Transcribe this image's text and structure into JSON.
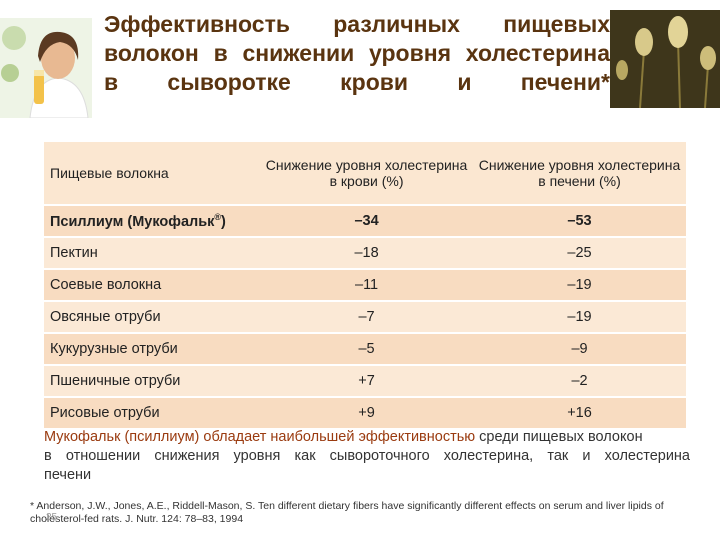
{
  "title": {
    "line1": "Эффективность различных пищевых",
    "line2": "волокон в снижении уровня холестерина",
    "line3": "в сыворотке крови и печени*"
  },
  "table": {
    "headers": [
      "Пищевые волокна",
      "Снижение уровня холестерина в крови (%)",
      "Снижение уровня холестерина в печени (%)"
    ],
    "rows": [
      {
        "name": "Псиллиум (Мукофальк",
        "sup": "®",
        "name_end": ")",
        "blood": "–34",
        "liver": "–53"
      },
      {
        "name": "Пектин",
        "blood": "–18",
        "liver": "–25"
      },
      {
        "name": "Соевые волокна",
        "blood": "–11",
        "liver": "–19"
      },
      {
        "name": "Овсяные отруби",
        "blood": "–7",
        "liver": "–19"
      },
      {
        "name": "Кукурузные отруби",
        "blood": "–5",
        "liver": "–9"
      },
      {
        "name": "Пшеничные отруби",
        "blood": "+7",
        "liver": "–2"
      },
      {
        "name": "Рисовые отруби",
        "blood": "+9",
        "liver": "+16"
      }
    ]
  },
  "note": {
    "part1": "Мукофальк (псиллиум) обладает наибольшей эффективностью",
    "part2": " среди пищевых волокон",
    "line2": "в отношении снижения уровня как сывороточного холестерина, так и холестерина",
    "line3": "печени"
  },
  "reference": "* Anderson, J.W., Jones, A.E., Riddell-Mason, S. Ten different dietary fibers have significantly different effects on serum and liver lipids of cholesterol-fed rats. J. Nutr. 124: 78–83, 1994",
  "page_number": "25",
  "colors": {
    "title": "#5a3410",
    "header_bg": "#fbe7d1",
    "row_bg": "#f8dcc1",
    "row_alt_bg": "#fbe9d6",
    "note_accent": "#9a3b10"
  },
  "images": {
    "left": "woman-with-juice-photo",
    "right": "psyllium-plant-photo"
  }
}
